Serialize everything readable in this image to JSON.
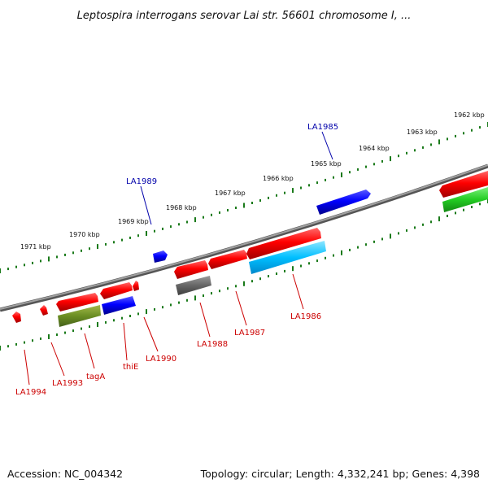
{
  "title": "Leptospira interrogans serovar Lai str. 56601 chromosome I, ...",
  "footer": {
    "accession": "Accession: NC_004342",
    "summary": "Topology: circular; Length: 4,332,241 bp; Genes: 4,398"
  },
  "colors": {
    "backbone": "#808080",
    "tick": "#1a7a1a",
    "label_red": "#cc0000",
    "label_blue": "#0000aa"
  },
  "kbp_ticks": [
    "1971 kbp",
    "1970 kbp",
    "1969 kbp",
    "1968 kbp",
    "1967 kbp",
    "1966 kbp",
    "1965 kbp",
    "1964 kbp",
    "1963 kbp",
    "1962 kbp"
  ],
  "genes": [
    {
      "name": "LA1994",
      "strand": "minus",
      "color": "#ff0000",
      "label_color": "#cc0000"
    },
    {
      "name": "LA1993",
      "strand": "minus",
      "color": "#ff0000",
      "label_color": "#cc0000"
    },
    {
      "name": "tagA",
      "strand": "minus",
      "color": "#6b8e23",
      "label_color": "#cc0000"
    },
    {
      "name": "thiE",
      "strand": "minus",
      "color": "#0000ff",
      "label_color": "#cc0000"
    },
    {
      "name": "LA1990",
      "strand": "minus",
      "color": "#ff0000",
      "label_color": "#cc0000"
    },
    {
      "name": "LA1989",
      "strand": "plus",
      "color": "#0000ff",
      "label_color": "#0000aa"
    },
    {
      "name": "LA1988",
      "strand": "minus",
      "color": "#666666",
      "label_color": "#cc0000"
    },
    {
      "name": "LA1987",
      "strand": "minus",
      "color": "#ff0000",
      "label_color": "#cc0000"
    },
    {
      "name": "LA1986",
      "strand": "minus",
      "color": "#00bfff",
      "label_color": "#cc0000"
    },
    {
      "name": "LA1985",
      "strand": "plus",
      "color": "#0000ff",
      "label_color": "#0000aa"
    }
  ]
}
